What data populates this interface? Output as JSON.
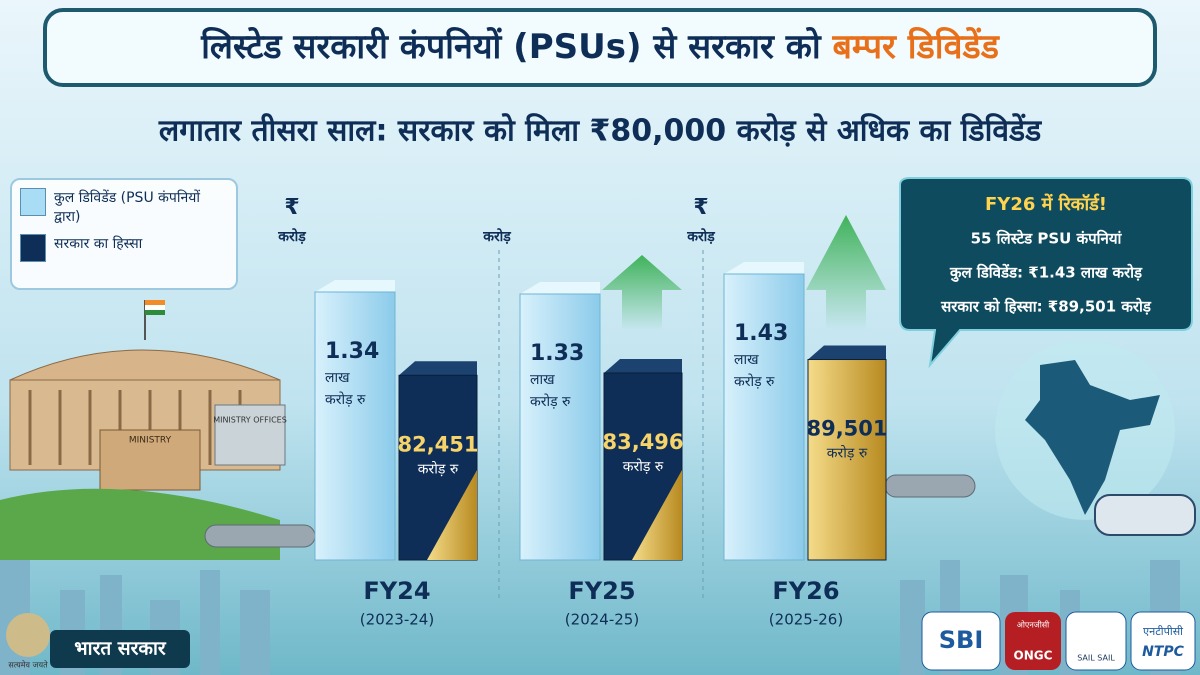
{
  "chart_data": {
    "type": "bar",
    "title": "लिस्टेड सरकारी कंपनियों (PSUs) से सरकार को",
    "title_highlight": "बम्पर डिविडेंड",
    "subtitle": "लगातार तीसरा साल: सरकार को मिला ₹80,000 करोड़ से अधिक का डिविडेंड",
    "categories": [
      "FY24",
      "FY25",
      "FY26"
    ],
    "category_years": [
      "(2023-24)",
      "(2024-25)",
      "(2025-26)"
    ],
    "column_units": [
      [
        "₹",
        "करोड़"
      ],
      [
        "करोड़"
      ],
      [
        "₹",
        "करोड़"
      ]
    ],
    "series": [
      {
        "name": "कुल डिविडेंड (PSU कंपनियों द्वारा)",
        "color": "#a9dcf5",
        "values": [
          1.34,
          1.33,
          1.43
        ],
        "unit": [
          "लाख",
          "करोड़ रु"
        ]
      },
      {
        "name": "सरकार का हिस्सा",
        "color": "#0f2e57",
        "values": [
          82451,
          83496,
          89501
        ],
        "value_labels": [
          "82,451",
          "83,496",
          "89,501"
        ],
        "unit": "करोड़ रु"
      }
    ],
    "callout": [
      "FY26 में रिकॉर्ड!",
      "55 लिस्टेड PSU कंपनियां",
      "कुल डिविडेंड: ₹1.43 लाख करोड़",
      "सरकार को हिस्सा: ₹89,501 करोड़"
    ],
    "building_labels": [
      "MINISTRY",
      "MINISTRY OFFICES"
    ],
    "footer": "भारत सरकार",
    "emblem_motto": "सत्यमेव जयते",
    "logos": [
      "SBI",
      "ओएनजीसी",
      "ONGC",
      "SAIL SAIL",
      "एनटीपीसी",
      "NTPC"
    ]
  }
}
